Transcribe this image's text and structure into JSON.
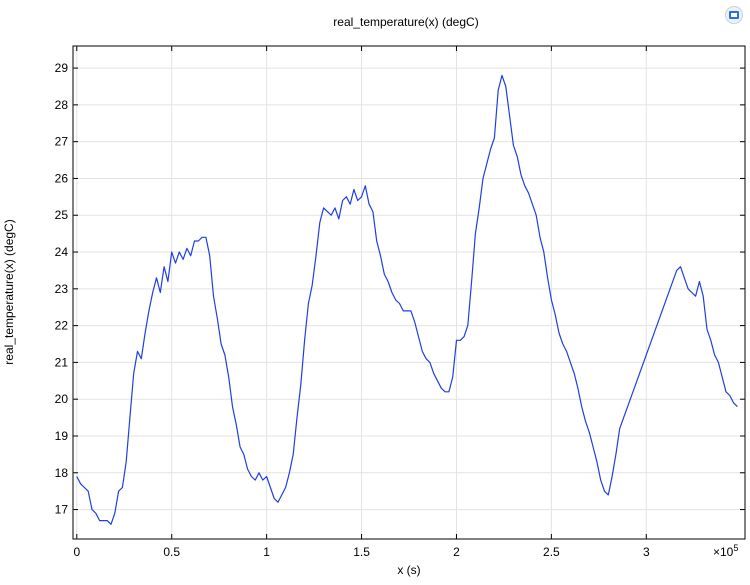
{
  "icons": {
    "corner": "data-window-icon"
  },
  "chart_data": {
    "type": "line",
    "title": "real_temperature(x) (degC)",
    "xlabel": "x (s)",
    "ylabel": "real_temperature(x) (degC)",
    "x_scale_label": "×10",
    "x_scale_exponent": "5",
    "xlim": [
      -0.02,
      3.52
    ],
    "ylim": [
      16.2,
      29.6
    ],
    "x_ticks": [
      0,
      0.5,
      1,
      1.5,
      2,
      2.5,
      3
    ],
    "x_tick_labels": [
      "0",
      "0.5",
      "1",
      "1.5",
      "2",
      "2.5",
      "3"
    ],
    "y_ticks": [
      17,
      18,
      19,
      20,
      21,
      22,
      23,
      24,
      25,
      26,
      27,
      28,
      29
    ],
    "y_tick_labels": [
      "17",
      "18",
      "19",
      "20",
      "21",
      "22",
      "23",
      "24",
      "25",
      "26",
      "27",
      "28",
      "29"
    ],
    "grid": true,
    "line_color": "#1f3fe0",
    "series": [
      {
        "x": [
          0.0,
          0.02,
          0.04,
          0.06,
          0.08,
          0.1,
          0.12,
          0.14,
          0.16,
          0.18,
          0.2,
          0.22,
          0.24,
          0.26,
          0.28,
          0.3,
          0.32,
          0.34,
          0.36,
          0.38,
          0.4,
          0.42,
          0.44,
          0.46,
          0.48,
          0.5,
          0.52,
          0.54,
          0.56,
          0.58,
          0.6,
          0.62,
          0.64,
          0.66,
          0.68,
          0.7,
          0.72,
          0.74,
          0.76,
          0.78,
          0.8,
          0.82,
          0.84,
          0.86,
          0.88,
          0.9,
          0.92,
          0.94,
          0.96,
          0.98,
          1.0,
          1.02,
          1.04,
          1.06,
          1.08,
          1.1,
          1.12,
          1.14,
          1.16,
          1.18,
          1.2,
          1.22,
          1.24,
          1.26,
          1.28,
          1.3,
          1.32,
          1.34,
          1.36,
          1.38,
          1.4,
          1.42,
          1.44,
          1.46,
          1.48,
          1.5,
          1.52,
          1.54,
          1.56,
          1.58,
          1.6,
          1.62,
          1.64,
          1.66,
          1.68,
          1.7,
          1.72,
          1.74,
          1.76,
          1.78,
          1.8,
          1.82,
          1.84,
          1.86,
          1.88,
          1.9,
          1.92,
          1.94,
          1.96,
          1.98,
          2.0,
          2.02,
          2.04,
          2.06,
          2.08,
          2.1,
          2.12,
          2.14,
          2.16,
          2.18,
          2.2,
          2.22,
          2.24,
          2.26,
          2.28,
          2.3,
          2.32,
          2.34,
          2.36,
          2.38,
          2.4,
          2.42,
          2.44,
          2.46,
          2.48,
          2.5,
          2.52,
          2.54,
          2.56,
          2.58,
          2.6,
          2.62,
          2.64,
          2.66,
          2.68,
          2.7,
          2.72,
          2.74,
          2.76,
          2.78,
          2.8,
          2.82,
          2.84,
          2.86,
          3.16,
          3.18,
          3.2,
          3.22,
          3.24,
          3.26,
          3.28,
          3.3,
          3.32,
          3.34,
          3.36,
          3.38,
          3.4,
          3.42,
          3.44,
          3.46,
          3.48
        ],
        "y": [
          17.9,
          17.7,
          17.6,
          17.5,
          17.0,
          16.9,
          16.7,
          16.7,
          16.7,
          16.6,
          16.9,
          17.5,
          17.6,
          18.3,
          19.5,
          20.7,
          21.3,
          21.1,
          21.8,
          22.4,
          22.9,
          23.3,
          22.9,
          23.6,
          23.2,
          24.0,
          23.7,
          24.0,
          23.8,
          24.1,
          23.9,
          24.3,
          24.3,
          24.4,
          24.4,
          23.9,
          22.8,
          22.2,
          21.5,
          21.2,
          20.6,
          19.8,
          19.3,
          18.7,
          18.5,
          18.1,
          17.9,
          17.8,
          18.0,
          17.8,
          17.9,
          17.6,
          17.3,
          17.2,
          17.4,
          17.6,
          18.0,
          18.5,
          19.5,
          20.4,
          21.6,
          22.6,
          23.1,
          23.9,
          24.8,
          25.2,
          25.1,
          25.0,
          25.2,
          24.9,
          25.4,
          25.5,
          25.3,
          25.7,
          25.4,
          25.5,
          25.8,
          25.3,
          25.1,
          24.3,
          23.9,
          23.4,
          23.2,
          22.9,
          22.7,
          22.6,
          22.4,
          22.4,
          22.4,
          22.1,
          21.7,
          21.3,
          21.1,
          21.0,
          20.7,
          20.5,
          20.3,
          20.2,
          20.2,
          20.6,
          21.6,
          21.6,
          21.7,
          22.0,
          23.2,
          24.5,
          25.2,
          26.0,
          26.4,
          26.8,
          27.1,
          28.4,
          28.8,
          28.5,
          27.7,
          26.9,
          26.6,
          26.1,
          25.8,
          25.6,
          25.3,
          25.0,
          24.4,
          24.0,
          23.3,
          22.7,
          22.3,
          21.8,
          21.5,
          21.3,
          21.0,
          20.7,
          20.3,
          19.8,
          19.4,
          19.1,
          18.7,
          18.3,
          17.8,
          17.5,
          17.4,
          17.9,
          18.5,
          19.2,
          23.5,
          23.6,
          23.3,
          23.0,
          22.9,
          22.8,
          23.2,
          22.8,
          21.9,
          21.6,
          21.2,
          21.0,
          20.6,
          20.2,
          20.1,
          19.9,
          19.8
        ]
      }
    ]
  }
}
